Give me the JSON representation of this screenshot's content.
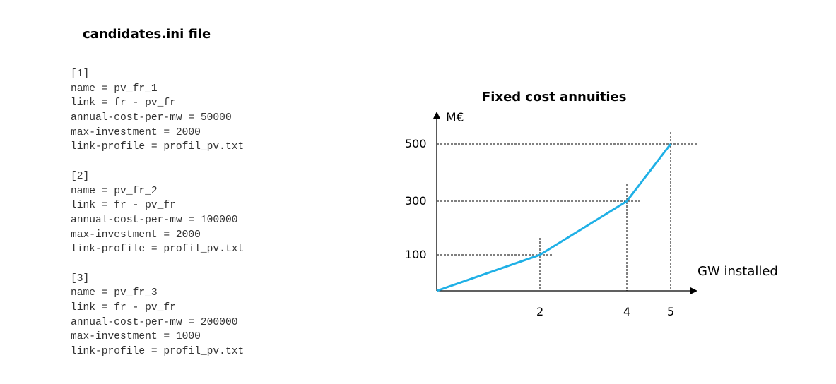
{
  "file_title": "candidates.ini file",
  "candidates": [
    {
      "header": "[1]",
      "lines": [
        "name = pv_fr_1",
        "link = fr - pv_fr",
        "annual-cost-per-mw = 50000",
        "max-investment = 2000",
        "link-profile = profil_pv.txt"
      ]
    },
    {
      "header": "[2]",
      "lines": [
        "name = pv_fr_2",
        "link = fr - pv_fr",
        "annual-cost-per-mw = 100000",
        "max-investment = 2000",
        "link-profile = profil_pv.txt"
      ]
    },
    {
      "header": "[3]",
      "lines": [
        "name = pv_fr_3",
        "link = fr - pv_fr",
        "annual-cost-per-mw = 200000",
        "max-investment = 1000",
        "link-profile = profil_pv.txt"
      ]
    }
  ],
  "chart_data": {
    "type": "line",
    "title": "Fixed cost annuities",
    "ylabel": "M€",
    "xlabel": "GW installed",
    "x": [
      0,
      2,
      4,
      5
    ],
    "y": [
      0,
      100,
      300,
      500
    ],
    "x_ticks": [
      "2",
      "4",
      "5"
    ],
    "y_ticks": [
      "100",
      "300",
      "500"
    ],
    "xlim": [
      0,
      5.5
    ],
    "ylim": [
      0,
      530
    ],
    "grid": false,
    "series_color": "#1FB0E6"
  }
}
